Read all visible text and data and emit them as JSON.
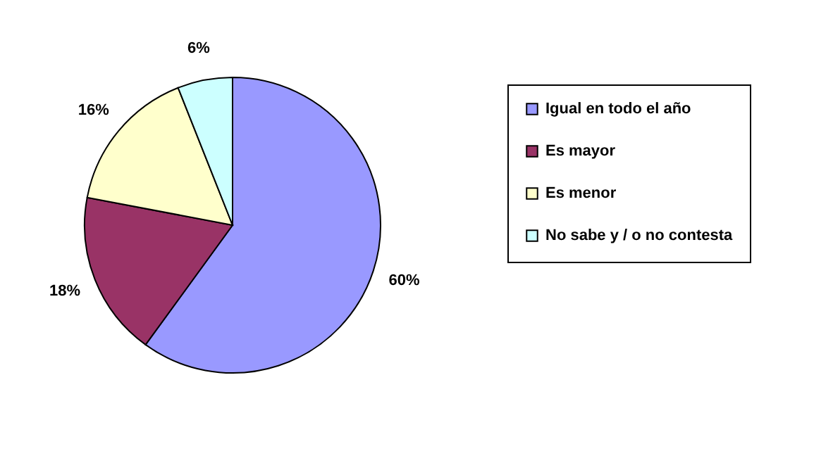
{
  "chart_data": {
    "type": "pie",
    "categories": [
      "Igual en todo el año",
      "Es mayor",
      "Es menor",
      "No sabe y / o no contesta"
    ],
    "values": [
      60,
      18,
      16,
      6
    ],
    "value_labels": [
      "60%",
      "18%",
      "16%",
      "6%"
    ],
    "colors": [
      "#9999ff",
      "#993366",
      "#ffffcc",
      "#ccffff"
    ],
    "legend": "right"
  }
}
